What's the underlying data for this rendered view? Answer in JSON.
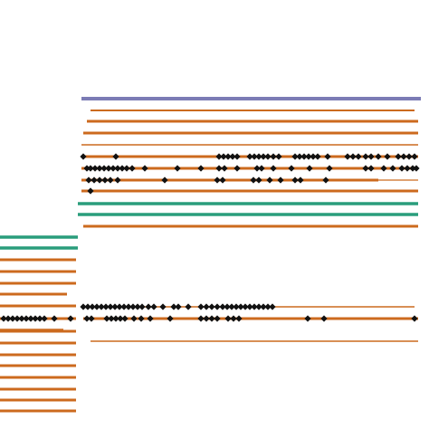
{
  "colors": {
    "background": "#ffffff",
    "purple": "#7b7bb5",
    "orange": "#cc6a1e",
    "teal": "#2a9d7c",
    "marker": "#111111"
  },
  "marker_icon": "diamond-icon"
}
